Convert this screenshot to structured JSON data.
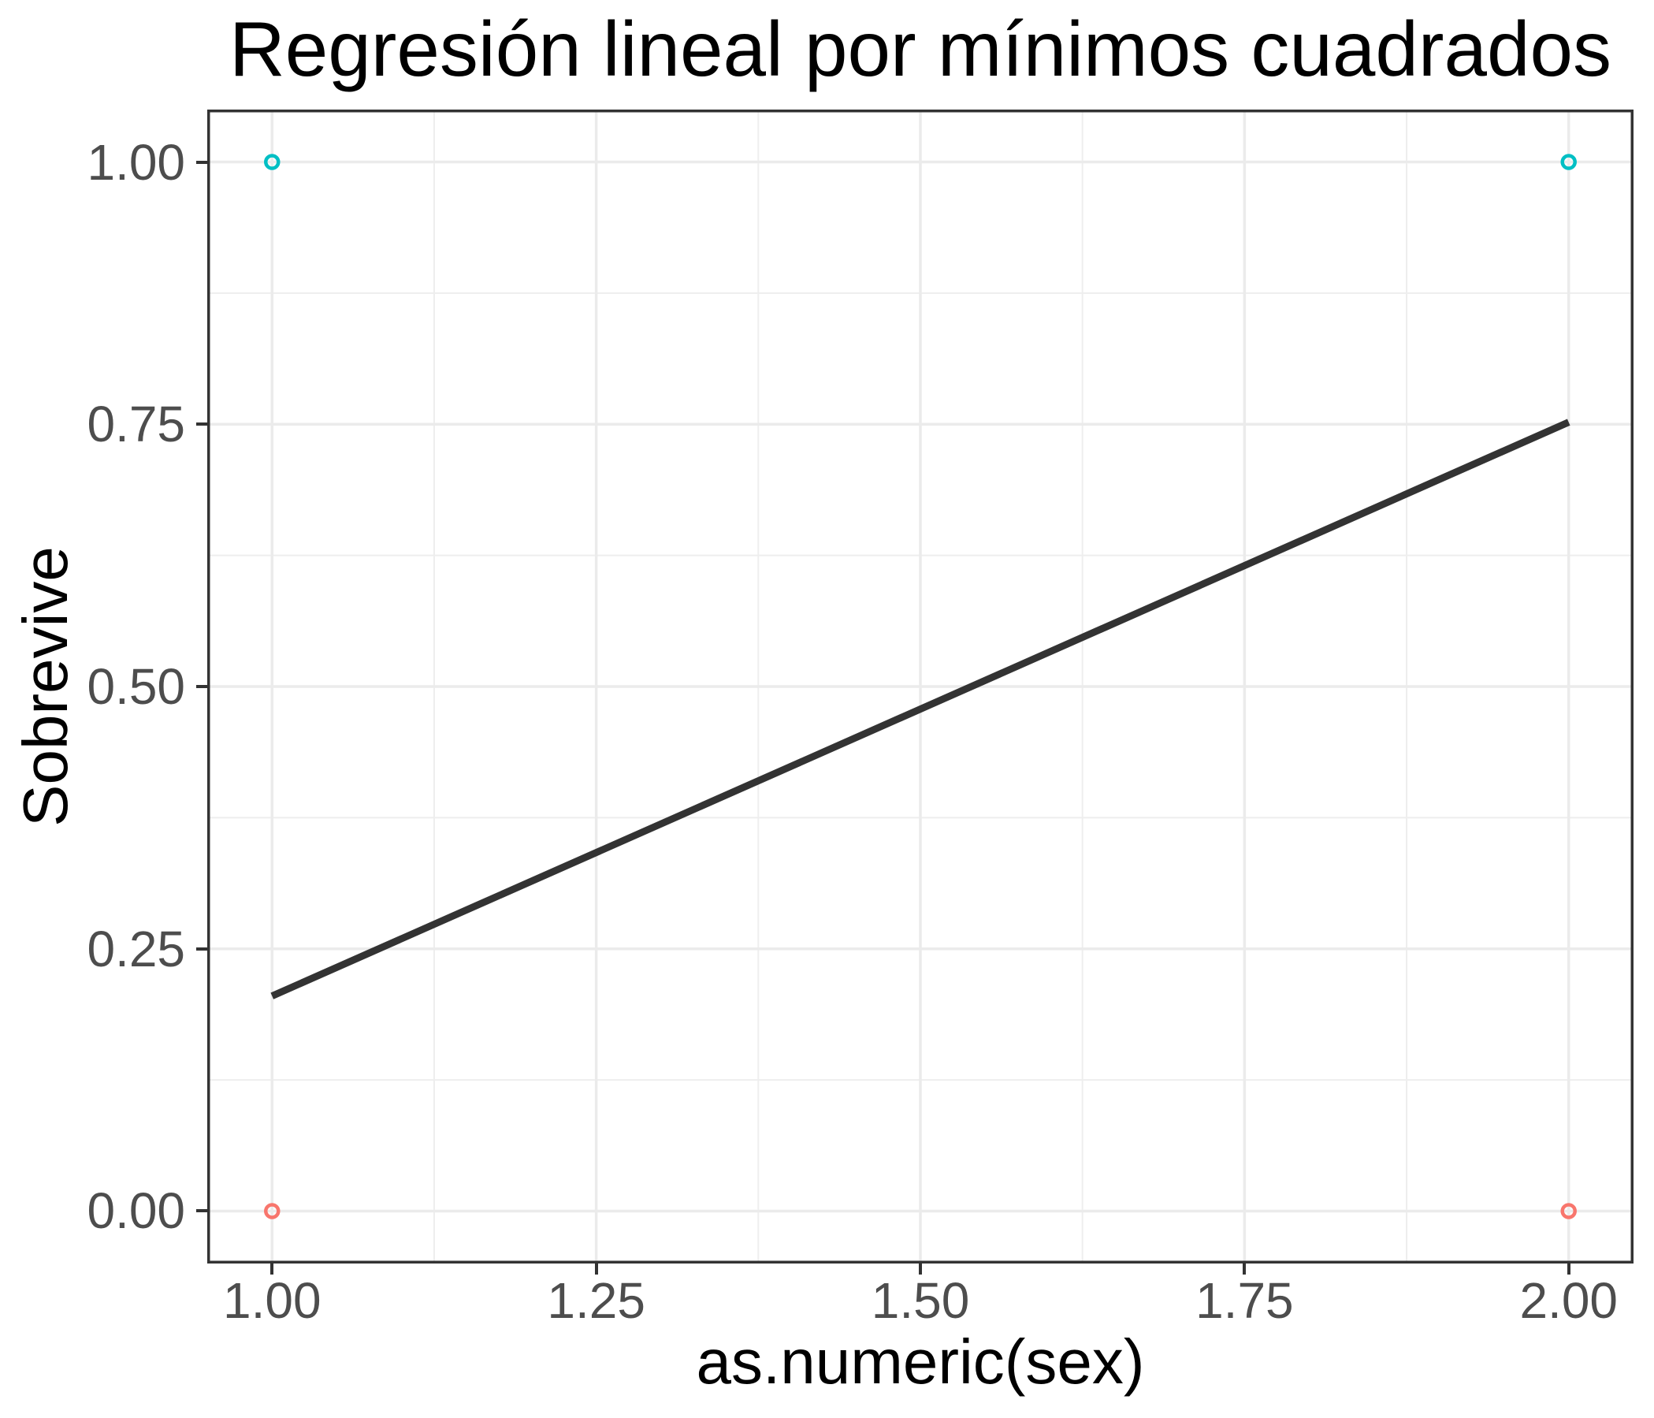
{
  "title": "Regresión lineal por mínimos cuadrados",
  "x_axis": {
    "title": "as.numeric(sex)",
    "tick_labels": [
      "1.00",
      "1.25",
      "1.50",
      "1.75",
      "2.00"
    ]
  },
  "y_axis": {
    "title": "Sobrevive",
    "tick_labels": [
      "0.00",
      "0.25",
      "0.50",
      "0.75",
      "1.00"
    ]
  },
  "colors": {
    "point_teal": "#00BFC4",
    "point_salmon": "#F8766D",
    "line": "#333333",
    "grid_major": "#EBEBEB",
    "grid_minor": "#EEEEEE",
    "panel_border": "#333333",
    "tick": "#333333",
    "tick_label": "#4D4D4D",
    "title_text": "#000000",
    "background": "#FFFFFF"
  },
  "chart_data": {
    "type": "scatter",
    "title": "Regresión lineal por mínimos cuadrados",
    "xlabel": "as.numeric(sex)",
    "ylabel": "Sobrevive",
    "xlim": [
      0.95,
      2.05
    ],
    "ylim": [
      -0.05,
      1.05
    ],
    "x_major_ticks": [
      1.0,
      1.25,
      1.5,
      1.75,
      2.0
    ],
    "y_major_ticks": [
      0.0,
      0.25,
      0.5,
      0.75,
      1.0
    ],
    "x_minor_ticks": [
      1.125,
      1.375,
      1.625,
      1.875
    ],
    "y_minor_ticks": [
      0.125,
      0.375,
      0.625,
      0.875
    ],
    "grid": "major+minor",
    "legend_position": "none",
    "points": [
      {
        "x": 1,
        "y": 1,
        "color": "#00BFC4"
      },
      {
        "x": 2,
        "y": 1,
        "color": "#00BFC4"
      },
      {
        "x": 1,
        "y": 0,
        "color": "#F8766D"
      },
      {
        "x": 2,
        "y": 0,
        "color": "#F8766D"
      }
    ],
    "regression_line": {
      "x": [
        1,
        2
      ],
      "y": [
        0.205,
        0.752
      ],
      "color": "#333333"
    }
  }
}
